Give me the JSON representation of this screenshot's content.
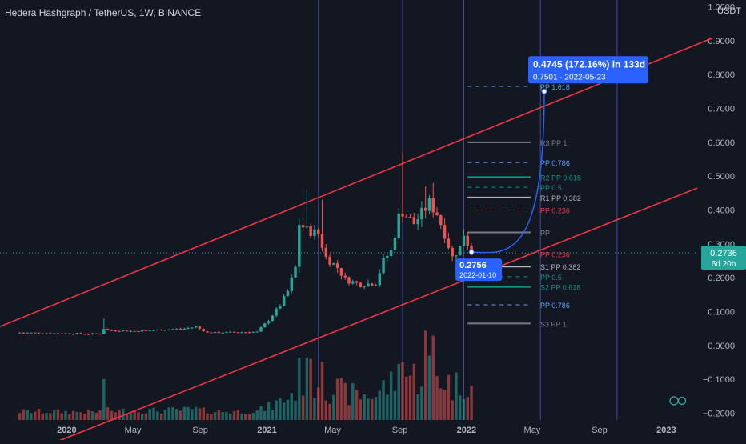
{
  "header": {
    "title": "Hedera Hashgraph / TetherUS, 1W, BINANCE",
    "currency": "USDT"
  },
  "colors": {
    "background": "#131722",
    "up": "#26a69a",
    "down": "#ef5350",
    "channel": "#f23645",
    "projection": "#2962ff",
    "text": "#d1d4dc",
    "axis_text": "#b2b5be",
    "price_tag": "#26a69a",
    "vertical_line": "#3d4a9e"
  },
  "chart_data": {
    "type": "candlestick",
    "y_axis": {
      "range": [
        -0.22,
        1.02
      ],
      "ticks": [
        "1.0000",
        "0.9000",
        "0.8000",
        "0.7000",
        "0.6000",
        "0.5000",
        "0.4000",
        "0.3000",
        "0.2000",
        "0.1000",
        "0.0000",
        "−0.1000",
        "−0.2000"
      ],
      "tick_values": [
        1.0,
        0.9,
        0.8,
        0.7,
        0.6,
        0.5,
        0.4,
        0.3,
        0.2,
        0.1,
        0.0,
        -0.1,
        -0.2
      ]
    },
    "x_axis": {
      "range": [
        "2019-09-01",
        "2023-02-28"
      ],
      "ticks": [
        {
          "label": "2020",
          "date": "2020-01-01"
        },
        {
          "label": "May",
          "date": "2020-05-01"
        },
        {
          "label": "Sep",
          "date": "2020-09-01"
        },
        {
          "label": "2021",
          "date": "2021-01-01"
        },
        {
          "label": "May",
          "date": "2021-05-01"
        },
        {
          "label": "Sep",
          "date": "2021-09-01"
        },
        {
          "label": "2022",
          "date": "2022-01-01"
        },
        {
          "label": "May",
          "date": "2022-05-01"
        },
        {
          "label": "Sep",
          "date": "2022-09-01"
        },
        {
          "label": "2023",
          "date": "2023-01-01"
        }
      ]
    },
    "vertical_lines": [
      "2021-04-05",
      "2021-09-06",
      "2021-12-27",
      "2022-05-16",
      "2022-10-03"
    ],
    "price_waypoints": [
      {
        "date": "2019-10-07",
        "price": 0.038
      },
      {
        "date": "2019-12-16",
        "price": 0.036
      },
      {
        "date": "2020-02-17",
        "price": 0.034
      },
      {
        "date": "2020-03-02",
        "price": 0.035
      },
      {
        "date": "2020-03-09",
        "price": 0.05
      },
      {
        "date": "2020-03-16",
        "price": 0.045
      },
      {
        "date": "2020-05-04",
        "price": 0.042
      },
      {
        "date": "2020-08-03",
        "price": 0.05
      },
      {
        "date": "2020-08-24",
        "price": 0.055
      },
      {
        "date": "2020-09-14",
        "price": 0.038
      },
      {
        "date": "2020-12-14",
        "price": 0.04
      },
      {
        "date": "2021-01-04",
        "price": 0.075
      },
      {
        "date": "2021-01-25",
        "price": 0.12
      },
      {
        "date": "2021-02-08",
        "price": 0.16
      },
      {
        "date": "2021-02-22",
        "price": 0.23
      },
      {
        "date": "2021-03-01",
        "price": 0.36
      },
      {
        "date": "2021-03-15",
        "price": 0.34
      },
      {
        "date": "2021-04-05",
        "price": 0.33
      },
      {
        "date": "2021-04-19",
        "price": 0.26
      },
      {
        "date": "2021-05-10",
        "price": 0.23
      },
      {
        "date": "2021-05-24",
        "price": 0.195
      },
      {
        "date": "2021-06-21",
        "price": 0.18
      },
      {
        "date": "2021-07-19",
        "price": 0.185
      },
      {
        "date": "2021-08-02",
        "price": 0.25
      },
      {
        "date": "2021-08-16",
        "price": 0.28
      },
      {
        "date": "2021-08-30",
        "price": 0.38
      },
      {
        "date": "2021-09-06",
        "price": 0.395
      },
      {
        "date": "2021-09-27",
        "price": 0.36
      },
      {
        "date": "2021-10-11",
        "price": 0.39
      },
      {
        "date": "2021-10-25",
        "price": 0.42
      },
      {
        "date": "2021-11-08",
        "price": 0.39
      },
      {
        "date": "2021-11-22",
        "price": 0.33
      },
      {
        "date": "2021-12-06",
        "price": 0.26
      },
      {
        "date": "2021-12-20",
        "price": 0.29
      },
      {
        "date": "2021-12-27",
        "price": 0.33
      },
      {
        "date": "2022-01-10",
        "price": 0.2736
      }
    ],
    "high_spikes": [
      {
        "date": "2020-03-09",
        "high": 0.08
      },
      {
        "date": "2021-03-15",
        "high": 0.46
      },
      {
        "date": "2021-04-12",
        "high": 0.43
      },
      {
        "date": "2021-09-06",
        "high": 0.57
      },
      {
        "date": "2021-11-01",
        "high": 0.48
      },
      {
        "date": "2021-10-18",
        "high": 0.47
      }
    ],
    "channel_lines": [
      {
        "start": {
          "date": "2019-08-26",
          "price": 0.052
        },
        "end": {
          "date": "2023-03-27",
          "price": 0.908
        }
      },
      {
        "start": {
          "date": "2019-11-11",
          "price": -0.305
        },
        "end": {
          "date": "2023-02-27",
          "price": 0.465
        }
      }
    ],
    "projection": {
      "start": {
        "date": "2022-01-10",
        "price": 0.2756
      },
      "end": {
        "date": "2022-05-23",
        "price": 0.7501
      },
      "label": "0.4745 (172.16%) in 133d",
      "sublabel_price": "0.7501",
      "sublabel_date": "2022-05-23",
      "start_price_label": "0.2756",
      "start_date_label": "2022-01-10"
    },
    "pivot_levels": [
      {
        "label": "PP 1.618",
        "value": 0.765,
        "color": "#5b9cf6",
        "dashed": true
      },
      {
        "label": "R3 PP 1",
        "value": 0.6,
        "color": "#787b86",
        "dashed": false
      },
      {
        "label": "PP 0.786",
        "value": 0.54,
        "color": "#5b9cf6",
        "dashed": true
      },
      {
        "label": "R2 PP 0.618",
        "value": 0.497,
        "color": "#089981",
        "dashed": false
      },
      {
        "label": "PP 0.5",
        "value": 0.467,
        "color": "#089981",
        "dashed": true
      },
      {
        "label": "R1 PP 0.382",
        "value": 0.437,
        "color": "#b2b5be",
        "dashed": false
      },
      {
        "label": "PP 0.236",
        "value": 0.4,
        "color": "#f23645",
        "dashed": true
      },
      {
        "label": "PP",
        "value": 0.334,
        "color": "#787b86",
        "dashed": false
      },
      {
        "label": "PP 0.236",
        "value": 0.27,
        "color": "#f23645",
        "dashed": true
      },
      {
        "label": "S1 PP 0.382",
        "value": 0.233,
        "color": "#b2b5be",
        "dashed": false
      },
      {
        "label": "PP 0.5",
        "value": 0.203,
        "color": "#089981",
        "dashed": true
      },
      {
        "label": "S2 PP 0.618",
        "value": 0.173,
        "color": "#089981",
        "dashed": false
      },
      {
        "label": "PP 0.786",
        "value": 0.12,
        "color": "#5b9cf6",
        "dashed": true
      },
      {
        "label": "S3 PP 1",
        "value": 0.065,
        "color": "#787b86",
        "dashed": false
      }
    ],
    "pivot_period": [
      "2022-01-03",
      "2022-05-23"
    ],
    "current_price": {
      "value": "0.2736",
      "countdown": "6d 20h",
      "level": 0.2736
    }
  },
  "footer_icon": "moon-sun-icon"
}
